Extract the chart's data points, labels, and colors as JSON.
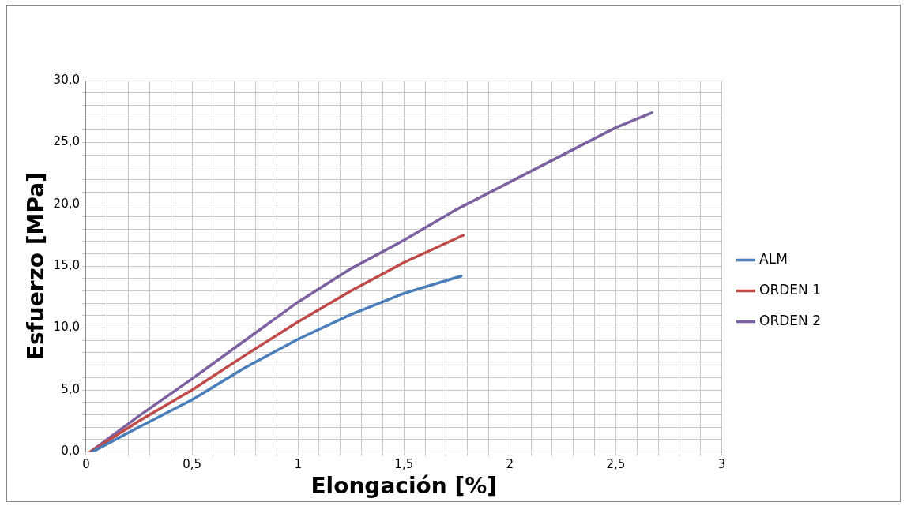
{
  "chart_data": {
    "type": "line",
    "xlabel": "Elongación [%]",
    "ylabel": "Esfuerzo [MPa]",
    "xlim": [
      0,
      3
    ],
    "ylim": [
      0,
      30
    ],
    "xticks": [
      0,
      {
        "value": 0.1,
        "label": null
      },
      {
        "value": 0.2,
        "label": null
      },
      {
        "value": 0.3,
        "label": null
      },
      {
        "value": 0.4,
        "label": null
      },
      {
        "value": 0.5,
        "label": "0,5"
      },
      {
        "value": 0.6,
        "label": null
      },
      {
        "value": 0.7,
        "label": null
      },
      {
        "value": 0.8,
        "label": null
      },
      {
        "value": 0.9,
        "label": null
      },
      1,
      {
        "value": 1.1,
        "label": null
      },
      {
        "value": 1.2,
        "label": null
      },
      {
        "value": 1.3,
        "label": null
      },
      {
        "value": 1.4,
        "label": null
      },
      {
        "value": 1.5,
        "label": "1,5"
      },
      {
        "value": 1.6,
        "label": null
      },
      {
        "value": 1.7,
        "label": null
      },
      {
        "value": 1.8,
        "label": null
      },
      {
        "value": 1.9,
        "label": null
      },
      2,
      {
        "value": 2.1,
        "label": null
      },
      {
        "value": 2.2,
        "label": null
      },
      {
        "value": 2.3,
        "label": null
      },
      {
        "value": 2.4,
        "label": null
      },
      {
        "value": 2.5,
        "label": "2,5"
      },
      {
        "value": 2.6,
        "label": null
      },
      {
        "value": 2.7,
        "label": null
      },
      {
        "value": 2.8,
        "label": null
      },
      {
        "value": 2.9,
        "label": null
      },
      3
    ],
    "yticks": [
      {
        "value": 0,
        "label": "0,0"
      },
      {
        "value": 1,
        "label": null
      },
      {
        "value": 2,
        "label": null
      },
      {
        "value": 3,
        "label": null
      },
      {
        "value": 4,
        "label": null
      },
      {
        "value": 5,
        "label": "5,0"
      },
      {
        "value": 6,
        "label": null
      },
      {
        "value": 7,
        "label": null
      },
      {
        "value": 8,
        "label": null
      },
      {
        "value": 9,
        "label": null
      },
      {
        "value": 10,
        "label": "10,0"
      },
      {
        "value": 11,
        "label": null
      },
      {
        "value": 12,
        "label": null
      },
      {
        "value": 13,
        "label": null
      },
      {
        "value": 14,
        "label": null
      },
      {
        "value": 15,
        "label": "15,0"
      },
      {
        "value": 16,
        "label": null
      },
      {
        "value": 17,
        "label": null
      },
      {
        "value": 18,
        "label": null
      },
      {
        "value": 19,
        "label": null
      },
      {
        "value": 20,
        "label": "20,0"
      },
      {
        "value": 21,
        "label": null
      },
      {
        "value": 22,
        "label": null
      },
      {
        "value": 23,
        "label": null
      },
      {
        "value": 24,
        "label": null
      },
      {
        "value": 25,
        "label": "25,0"
      },
      {
        "value": 26,
        "label": null
      },
      {
        "value": 27,
        "label": null
      },
      {
        "value": 28,
        "label": null
      },
      {
        "value": 29,
        "label": null
      },
      {
        "value": 30,
        "label": "30,0"
      }
    ],
    "grid": true,
    "legend": "right",
    "marker": "none",
    "line_style": "solid",
    "series": [
      {
        "name": "ALM",
        "color": "#4a7ebb",
        "x": [
          0.03,
          0.25,
          0.5,
          0.75,
          1,
          1.25,
          1.5,
          1.77
        ],
        "values": [
          0,
          2,
          4.2,
          6.8,
          9.1,
          11.1,
          12.8,
          14.2
        ]
      },
      {
        "name": "ORDEN 1",
        "color": "#be4b48",
        "x": [
          0.02,
          0.25,
          0.5,
          0.75,
          1,
          1.25,
          1.5,
          1.78
        ],
        "values": [
          0,
          2.5,
          5,
          7.8,
          10.5,
          13,
          15.3,
          17.5
        ]
      },
      {
        "name": "ORDEN 2",
        "color": "#7d60a0",
        "x": [
          0.02,
          0.25,
          0.5,
          0.75,
          1,
          1.25,
          1.5,
          1.75,
          2,
          2.25,
          2.5,
          2.67
        ],
        "values": [
          0,
          2.9,
          5.9,
          9,
          12.1,
          14.8,
          17.1,
          19.6,
          21.8,
          24,
          26.2,
          27.4
        ]
      }
    ]
  }
}
